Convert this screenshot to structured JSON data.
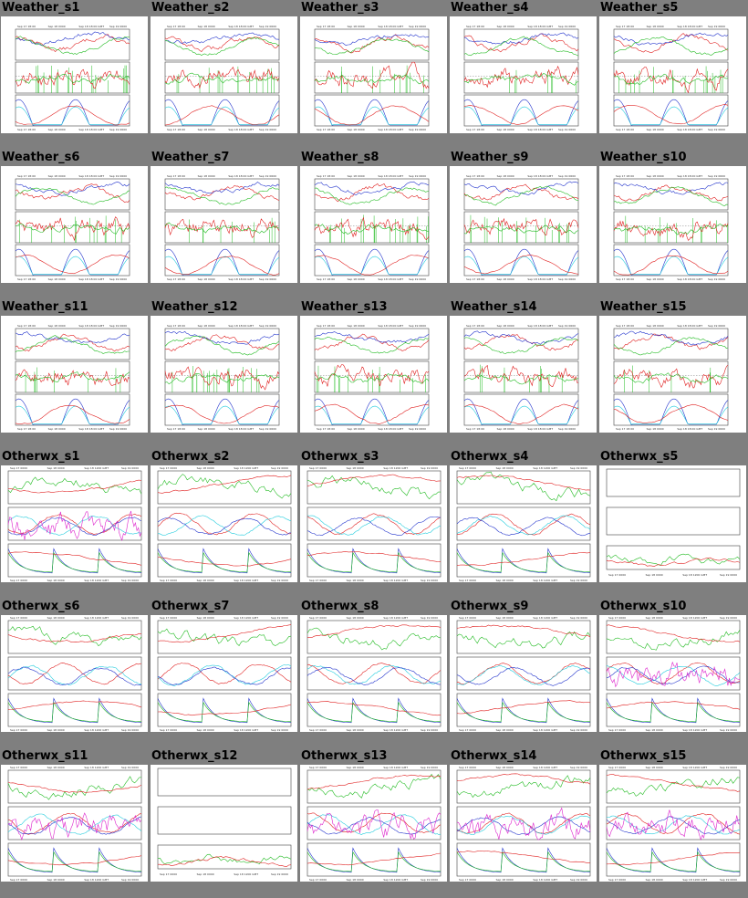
{
  "groups": [
    {
      "name": "Weather",
      "panel_style": "weather",
      "items": [
        {
          "label": "Weather_s1",
          "date_labels": [
            "Sep 17 18:00",
            "Sep 18 0000",
            "Sep 18 18:00 GMT",
            "Sep 19 0600"
          ]
        },
        {
          "label": "Weather_s2",
          "date_labels": [
            "Sep 17 18:00",
            "Sep 18 0000",
            "Sep 18 18:00 GMT",
            "Sep 19 0600"
          ]
        },
        {
          "label": "Weather_s3",
          "date_labels": [
            "Sep 17 18:00",
            "Sep 18 0000",
            "Sep 18 18:00 GMT",
            "Sep 19 0600"
          ]
        },
        {
          "label": "Weather_s4",
          "date_labels": [
            "Sep 17 18:00",
            "Sep 18 0000",
            "Sep 18 18:00 GMT",
            "Sep 19 0600"
          ]
        },
        {
          "label": "Weather_s5",
          "date_labels": [
            "Sep 17 18:00",
            "Sep 18 0000",
            "Sep 18 18:00 GMT",
            "Sep 19 0600"
          ]
        },
        {
          "label": "Weather_s6",
          "date_labels": [
            "Sep 17 18:00",
            "Sep 18 0000",
            "Sep 18 18:00 GMT",
            "Sep 19 0600"
          ]
        },
        {
          "label": "Weather_s7",
          "date_labels": [
            "Sep 17 18:00",
            "Sep 18 0000",
            "Sep 18 18:00 GMT",
            "Sep 19 0600"
          ]
        },
        {
          "label": "Weather_s8",
          "date_labels": [
            "Sep 17 18:00",
            "Sep 18 0000",
            "Sep 18 18:00 GMT",
            "Sep 19 0600"
          ]
        },
        {
          "label": "Weather_s9",
          "date_labels": [
            "Sep 17 18:00",
            "Sep 18 0000",
            "Sep 18 18:00 GMT",
            "Sep 19 0600"
          ]
        },
        {
          "label": "Weather_s10",
          "date_labels": [
            "Sep 17 18:00",
            "Sep 18 0000",
            "Sep 18 18:00 GMT",
            "Sep 19 0600"
          ]
        },
        {
          "label": "Weather_s11",
          "date_labels": [
            "Sep 17 18:00",
            "Sep 18 0000",
            "Sep 18 18:00 GMT",
            "Sep 19 0600"
          ]
        },
        {
          "label": "Weather_s12",
          "date_labels": [
            "Sep 17 18:00",
            "Sep 18 0000",
            "Sep 18 18:00 GMT",
            "Sep 19 0600"
          ]
        },
        {
          "label": "Weather_s13",
          "date_labels": [
            "Sep 17 18:00",
            "Sep 18 0000",
            "Sep 18 18:00 GMT",
            "Sep 19 0600"
          ]
        },
        {
          "label": "Weather_s14",
          "date_labels": [
            "Sep 17 18:00",
            "Sep 18 0000",
            "Sep 18 18:00 GMT",
            "Sep 19 0600"
          ]
        },
        {
          "label": "Weather_s15",
          "date_labels": [
            "Sep 17 18:00",
            "Sep 18 0000",
            "Sep 18 18:00 GMT",
            "Sep 19 0600"
          ]
        }
      ]
    },
    {
      "name": "Otherwx",
      "panel_style": "otherwx",
      "items": [
        {
          "label": "Otherwx_s1",
          "date_labels": [
            "Sep 17 0000",
            "Sep 18 0000",
            "Sep 18 1200 GMT",
            "Sep 19 0000"
          ]
        },
        {
          "label": "Otherwx_s2",
          "date_labels": [
            "Sep 17 0000",
            "Sep 18 0000",
            "Sep 18 1200 GMT",
            "Sep 19 0000"
          ]
        },
        {
          "label": "Otherwx_s3",
          "date_labels": [
            "Sep 17 0000",
            "Sep 18 0000",
            "Sep 18 1200 GMT",
            "Sep 19 0000"
          ]
        },
        {
          "label": "Otherwx_s4",
          "date_labels": [
            "Sep 17 0000",
            "Sep 18 0000",
            "Sep 18 1200 GMT",
            "Sep 19 0000"
          ]
        },
        {
          "label": "Otherwx_s5",
          "date_labels": [
            "Sep 17 0000",
            "Sep 18 0000",
            "Sep 18 1200 GMT",
            "Sep 19 0000"
          ],
          "empty_panels": true
        },
        {
          "label": "Otherwx_s6",
          "date_labels": [
            "Sep 17 0000",
            "Sep 18 0000",
            "Sep 18 1200 GMT",
            "Sep 19 0000"
          ]
        },
        {
          "label": "Otherwx_s7",
          "date_labels": [
            "Sep 17 0000",
            "Sep 18 0000",
            "Sep 18 1200 GMT",
            "Sep 19 0000"
          ]
        },
        {
          "label": "Otherwx_s8",
          "date_labels": [
            "Sep 17 0000",
            "Sep 18 0000",
            "Sep 18 1200 GMT",
            "Sep 19 0000"
          ]
        },
        {
          "label": "Otherwx_s9",
          "date_labels": [
            "Sep 17 0000",
            "Sep 18 0000",
            "Sep 18 1200 GMT",
            "Sep 19 0000"
          ]
        },
        {
          "label": "Otherwx_s10",
          "date_labels": [
            "Sep 17 0000",
            "Sep 18 0000",
            "Sep 18 1200 GMT",
            "Sep 19 0000"
          ]
        },
        {
          "label": "Otherwx_s11",
          "date_labels": [
            "Sep 17 0000",
            "Sep 18 0000",
            "Sep 18 1200 GMT",
            "Sep 19 0000"
          ]
        },
        {
          "label": "Otherwx_s12",
          "date_labels": [
            "Sep 17 0000",
            "Sep 18 0000",
            "Sep 18 1200 GMT",
            "Sep 19 0000"
          ],
          "empty_panels": true
        },
        {
          "label": "Otherwx_s13",
          "date_labels": [
            "Sep 17 0000",
            "Sep 18 0000",
            "Sep 18 1200 GMT",
            "Sep 19 0000"
          ]
        },
        {
          "label": "Otherwx_s14",
          "date_labels": [
            "Sep 17 0000",
            "Sep 18 0000",
            "Sep 18 1200 GMT",
            "Sep 19 0000"
          ]
        },
        {
          "label": "Otherwx_s15",
          "date_labels": [
            "Sep 17 0000",
            "Sep 18 0000",
            "Sep 18 1200 GMT",
            "Sep 19 0000"
          ]
        }
      ]
    }
  ],
  "colors": {
    "page_background": "#7f7f7f",
    "thumbnail_background": "#ffffff",
    "series_red": "#e02020",
    "series_green": "#22bb22",
    "series_blue": "#2233cc",
    "series_cyan": "#22ccdd",
    "series_magenta": "#dd22cc"
  },
  "chart_data": {
    "type": "line",
    "layout": "small-multiples grid, 5 columns x 6 rows",
    "panels_per_thumbnail": 3,
    "x_axis": "time (date_labels per thumbnail)",
    "grid": false
  }
}
